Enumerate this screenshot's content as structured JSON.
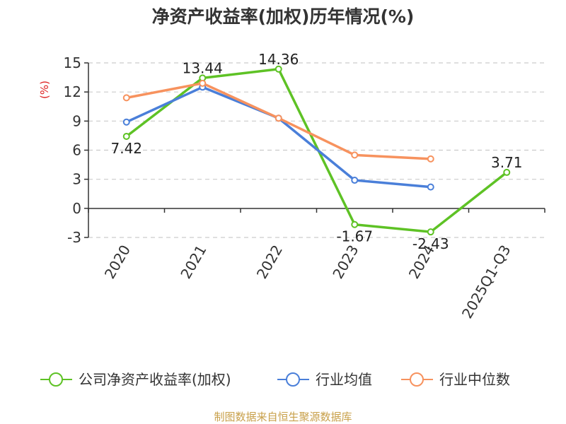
{
  "chart_data": {
    "type": "line",
    "title": "净资产收益率(加权)历年情况(%)",
    "unit_label": "(%)",
    "categories": [
      "2020",
      "2021",
      "2022",
      "2023",
      "2024",
      "2025Q1-Q3"
    ],
    "ylim": [
      -3,
      15
    ],
    "yticks": [
      15,
      12,
      9,
      6,
      3,
      0,
      -3
    ],
    "ytick_labels": [
      "15",
      "12",
      "9",
      "6",
      "3",
      "0",
      "-3"
    ],
    "grid": true,
    "legend_position": "bottom",
    "series": [
      {
        "name": "公司净资产收益率(加权)",
        "color": "#5ec225",
        "values": [
          7.42,
          13.44,
          14.36,
          -1.67,
          -2.43,
          3.71
        ],
        "data_labels": [
          "7.42",
          "13.44",
          "14.36",
          "-1.67",
          "-2.43",
          "3.71"
        ]
      },
      {
        "name": "行业均值",
        "color": "#4a7fd9",
        "values": [
          8.9,
          12.5,
          9.3,
          2.9,
          2.2,
          null
        ]
      },
      {
        "name": "行业中位数",
        "color": "#f7925e",
        "values": [
          11.4,
          12.9,
          9.3,
          5.5,
          5.1,
          null
        ]
      }
    ]
  },
  "source_text": "制图数据来自恒生聚源数据库",
  "colors": {
    "title": "#333333",
    "axis": "#333333",
    "grid": "#cccccc",
    "unit_label": "#dd2222",
    "source": "#c8a04a"
  }
}
